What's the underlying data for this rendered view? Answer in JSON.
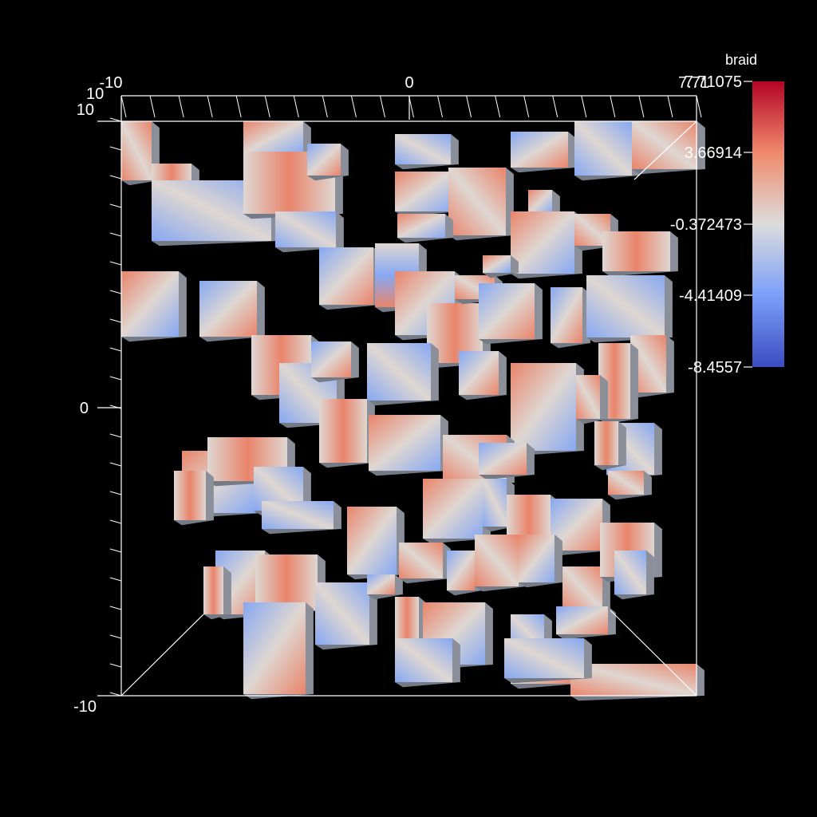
{
  "chart_data": {
    "type": "heatmap",
    "subtype": "3d-volume-blocks",
    "colorbar": {
      "title": "braid",
      "max_label": "7.71075",
      "labels": [
        "7.71075",
        "3.66914",
        "-0.372473",
        "-4.41409",
        "-8.4557"
      ],
      "range": [
        -8.4557,
        7.71075
      ],
      "colors": [
        "#b40426",
        "#f08a6c",
        "#dcdcdc",
        "#7b9ff9",
        "#3b4cc0"
      ]
    },
    "axes": {
      "top": {
        "range": [
          -10,
          10
        ],
        "tick_labels": [
          "-10",
          "0",
          "7.71"
        ]
      },
      "left": {
        "range": [
          -10,
          10
        ],
        "tick_labels": [
          "10",
          "0",
          "-10"
        ]
      },
      "depth_tick_label": "10"
    }
  }
}
